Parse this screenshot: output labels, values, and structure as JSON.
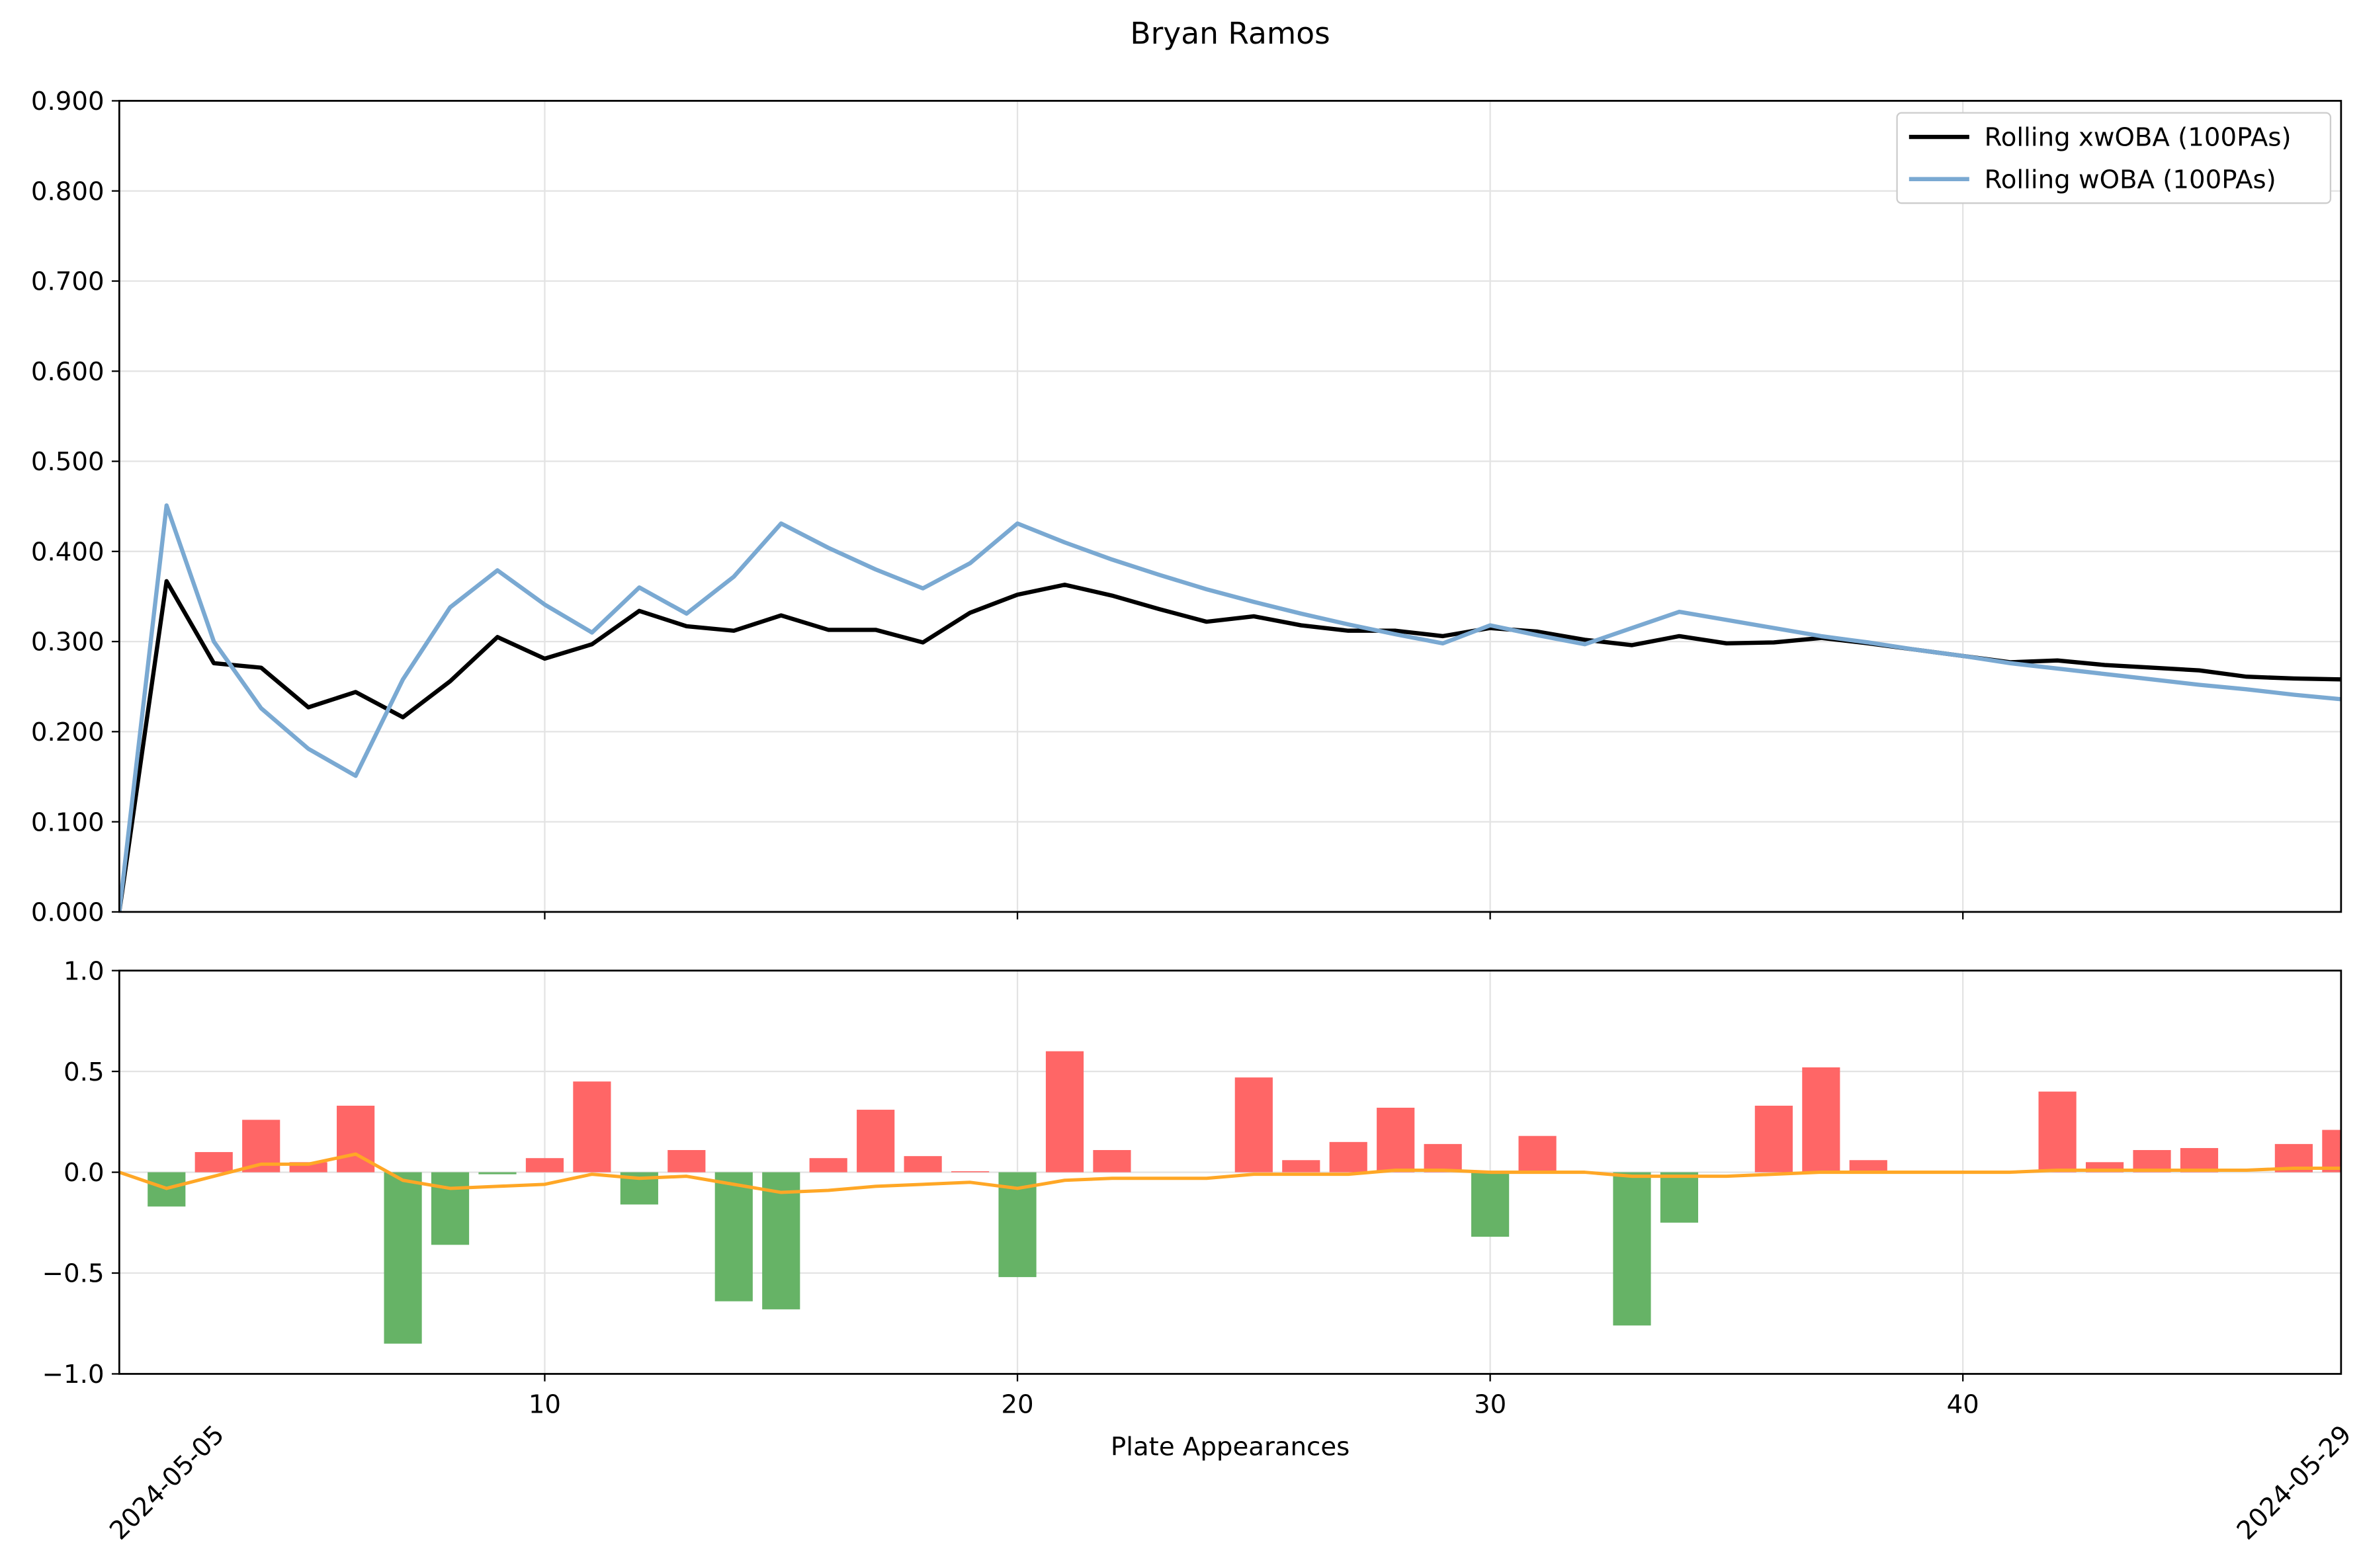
{
  "chart_data": [
    {
      "type": "line",
      "title": "Bryan Ramos",
      "x": [
        1,
        2,
        3,
        4,
        5,
        6,
        7,
        8,
        9,
        10,
        11,
        12,
        13,
        14,
        15,
        16,
        17,
        18,
        19,
        20,
        21,
        22,
        23,
        24,
        25,
        26,
        27,
        28,
        29,
        30,
        31,
        32,
        33,
        34,
        35,
        36,
        37,
        38,
        39,
        40,
        41,
        42,
        43,
        44,
        45,
        46,
        47,
        48
      ],
      "series": [
        {
          "name": "Rolling xwOBA (100PAs)",
          "color": "#000000",
          "values": [
            0,
            0.367,
            0.276,
            0.271,
            0.227,
            0.244,
            0.216,
            0.256,
            0.305,
            0.281,
            0.297,
            0.334,
            0.317,
            0.312,
            0.329,
            0.313,
            0.313,
            0.299,
            0.332,
            0.352,
            0.363,
            0.351,
            0.336,
            0.322,
            0.328,
            0.318,
            0.312,
            0.312,
            0.306,
            0.315,
            0.311,
            0.302,
            0.296,
            0.306,
            0.298,
            0.299,
            0.304,
            0.298,
            0.291,
            0.284,
            0.277,
            0.279,
            0.274,
            0.271,
            0.268,
            0.261,
            0.259,
            0.258
          ]
        },
        {
          "name": "Rolling wOBA (100PAs)",
          "color": "#7aa9d2",
          "values": [
            0,
            0.451,
            0.3,
            0.226,
            0.181,
            0.151,
            0.258,
            0.338,
            0.379,
            0.341,
            0.31,
            0.36,
            0.331,
            0.372,
            0.431,
            0.404,
            0.38,
            0.359,
            0.387,
            0.431,
            0.41,
            0.391,
            0.374,
            0.358,
            0.344,
            0.331,
            0.319,
            0.308,
            0.298,
            0.318,
            0.307,
            0.297,
            0.315,
            0.333,
            0.324,
            0.315,
            0.306,
            0.299,
            0.291,
            0.284,
            0.276,
            0.27,
            0.264,
            0.258,
            0.252,
            0.247,
            0.241,
            0.236
          ]
        }
      ],
      "xlim": [
        1,
        48
      ],
      "xticks": [
        10,
        20,
        30,
        40
      ],
      "show_xtick_labels": false,
      "ylim": [
        0,
        0.9
      ],
      "yticks": [
        {
          "value": 0,
          "label": "0.000"
        },
        {
          "value": 0.1,
          "label": "0.100"
        },
        {
          "value": 0.2,
          "label": "0.200"
        },
        {
          "value": 0.3,
          "label": "0.300"
        },
        {
          "value": 0.4,
          "label": "0.400"
        },
        {
          "value": 0.5,
          "label": "0.500"
        },
        {
          "value": 0.6,
          "label": "0.600"
        },
        {
          "value": 0.7,
          "label": "0.700"
        },
        {
          "value": 0.8,
          "label": "0.800"
        },
        {
          "value": 0.9,
          "label": "0.900"
        }
      ],
      "grid": true,
      "legend": "upper right"
    },
    {
      "type": "bar",
      "x_label": "Plate Appearances",
      "x": [
        1,
        2,
        3,
        4,
        5,
        6,
        7,
        8,
        9,
        10,
        11,
        12,
        13,
        14,
        15,
        16,
        17,
        18,
        19,
        20,
        21,
        22,
        23,
        24,
        25,
        26,
        27,
        28,
        29,
        30,
        31,
        32,
        33,
        34,
        35,
        36,
        37,
        38,
        39,
        40,
        41,
        42,
        43,
        44,
        45,
        46,
        47,
        48
      ],
      "values": [
        0,
        -0.17,
        0.1,
        0.26,
        0.05,
        0.33,
        -0.85,
        -0.36,
        -0.01,
        0.07,
        0.45,
        -0.16,
        0.11,
        -0.64,
        -0.68,
        0.07,
        0.31,
        0.08,
        0.005,
        -0.52,
        0.6,
        0.11,
        0,
        0,
        0.47,
        0.06,
        0.15,
        0.32,
        0.14,
        -0.32,
        0.18,
        0,
        -0.76,
        -0.25,
        0,
        0.33,
        0.52,
        0.06,
        0,
        0,
        0,
        0.4,
        0.05,
        0.11,
        0.12,
        0,
        0.14,
        0.21
      ],
      "line_values": [
        0,
        -0.08,
        -0.02,
        0.04,
        0.04,
        0.09,
        -0.04,
        -0.08,
        -0.07,
        -0.06,
        -0.01,
        -0.03,
        -0.02,
        -0.06,
        -0.1,
        -0.09,
        -0.07,
        -0.06,
        -0.05,
        -0.08,
        -0.04,
        -0.03,
        -0.03,
        -0.03,
        -0.01,
        -0.01,
        -0.01,
        0.01,
        0.01,
        0,
        0,
        0,
        -0.02,
        -0.02,
        -0.02,
        -0.01,
        0,
        0,
        0,
        0,
        0,
        0.01,
        0.01,
        0.01,
        0.01,
        0.01,
        0.02,
        0.02
      ],
      "positive_color": "#ff6666",
      "negative_color": "#66b366",
      "line_color": "#ffa726",
      "xlim": [
        1,
        48
      ],
      "xticks": [
        10,
        20,
        30,
        40
      ],
      "date_labels": [
        {
          "value": 2,
          "label": "2024-05-05"
        },
        {
          "value": 47,
          "label": "2024-05-29"
        }
      ],
      "ylim": [
        -1,
        1
      ],
      "yticks": [
        {
          "value": -1,
          "label": "−1.0"
        },
        {
          "value": -0.5,
          "label": "−0.5"
        },
        {
          "value": 0,
          "label": "0.0"
        },
        0.5,
        {
          "value": 1,
          "label": "1.0"
        }
      ],
      "grid": true
    }
  ]
}
